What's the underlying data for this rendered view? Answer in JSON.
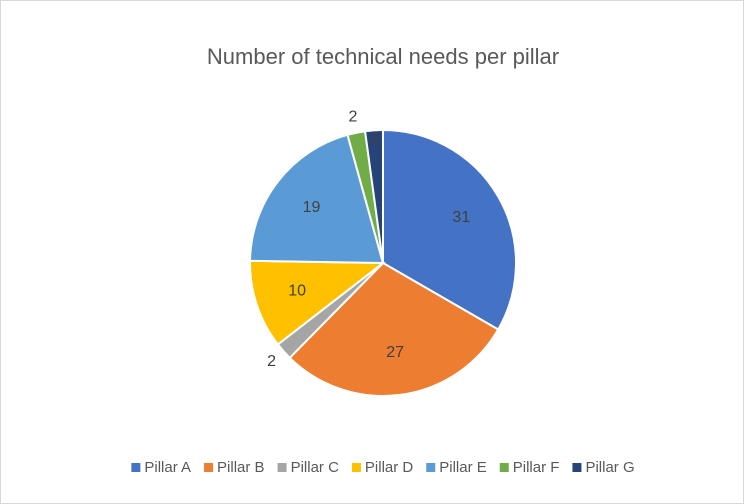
{
  "chart_data": {
    "type": "pie",
    "title": "Number of technical needs per pillar",
    "categories": [
      "Pillar A",
      "Pillar B",
      "Pillar C",
      "Pillar D",
      "Pillar E",
      "Pillar F",
      "Pillar G"
    ],
    "values": [
      31,
      27,
      2,
      10,
      19,
      2,
      2
    ],
    "colors": [
      "#4472c4",
      "#ed7d31",
      "#a5a5a5",
      "#ffc000",
      "#5b9bd5",
      "#70ad47",
      "#264478"
    ],
    "legend": "bottom"
  }
}
